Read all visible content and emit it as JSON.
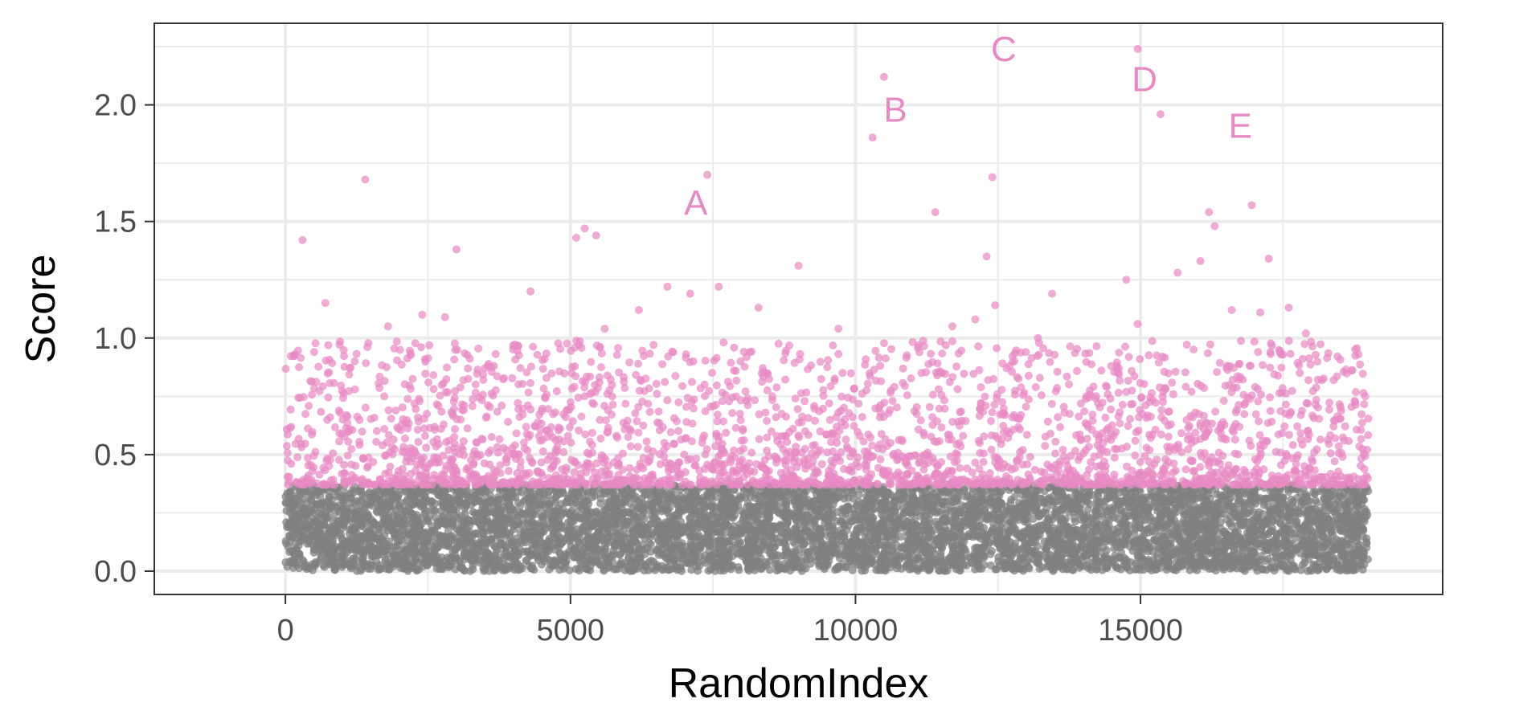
{
  "chart_data": {
    "type": "scatter",
    "title": "",
    "xlabel": "RandomIndex",
    "ylabel": "Score",
    "xlim": [
      -2300,
      20300
    ],
    "ylim": [
      -0.1,
      2.35
    ],
    "x_ticks": [
      0,
      5000,
      10000,
      15000
    ],
    "x_tick_labels": [
      "0",
      "5000",
      "10000",
      "15000"
    ],
    "y_ticks": [
      0.0,
      0.5,
      1.0,
      1.5,
      2.0
    ],
    "y_tick_labels": [
      "0.0",
      "0.5",
      "1.0",
      "1.5",
      "2.0"
    ],
    "grid": true,
    "threshold": 0.37,
    "colors": {
      "above": "#e78ac3",
      "below": "#7f7f7f",
      "panel_border": "#333333",
      "grid": "#ebebeb"
    },
    "n_points_approx": 19000,
    "series": [
      {
        "color": "#e78ac3",
        "points": [
          [
            7400,
            1.7
          ],
          [
            10300,
            1.86
          ],
          [
            10500,
            2.12
          ],
          [
            14950,
            2.24
          ],
          [
            15350,
            1.96
          ],
          [
            1400,
            1.68
          ],
          [
            300,
            1.42
          ],
          [
            3000,
            1.38
          ],
          [
            5250,
            1.47
          ],
          [
            5100,
            1.43
          ],
          [
            5450,
            1.44
          ],
          [
            9000,
            1.31
          ],
          [
            11400,
            1.54
          ],
          [
            12300,
            1.35
          ],
          [
            12400,
            1.69
          ],
          [
            12450,
            1.14
          ],
          [
            15650,
            1.28
          ],
          [
            16200,
            1.54
          ],
          [
            16300,
            1.48
          ],
          [
            16950,
            1.57
          ],
          [
            17250,
            1.34
          ],
          [
            16050,
            1.33
          ],
          [
            14750,
            1.25
          ],
          [
            17100,
            1.11
          ],
          [
            16600,
            1.12
          ],
          [
            17600,
            1.13
          ],
          [
            13450,
            1.19
          ],
          [
            4300,
            1.2
          ],
          [
            6700,
            1.22
          ],
          [
            7100,
            1.19
          ],
          [
            7600,
            1.22
          ],
          [
            12100,
            1.08
          ],
          [
            11700,
            1.05
          ],
          [
            2800,
            1.09
          ],
          [
            1800,
            1.05
          ],
          [
            700,
            1.15
          ],
          [
            6200,
            1.12
          ],
          [
            5600,
            1.04
          ],
          [
            9700,
            1.04
          ],
          [
            11100,
            0.97
          ],
          [
            13200,
            1.0
          ],
          [
            14950,
            1.06
          ],
          [
            17900,
            1.02
          ],
          [
            8300,
            1.13
          ],
          [
            2400,
            1.1
          ]
        ]
      },
      {
        "color": "#7f7f7f",
        "points": []
      }
    ],
    "annotations": [
      {
        "text": "A",
        "x": 7200,
        "y": 1.58
      },
      {
        "text": "B",
        "x": 10700,
        "y": 1.98
      },
      {
        "text": "C",
        "x": 12600,
        "y": 2.24
      },
      {
        "text": "D",
        "x": 15070,
        "y": 2.11
      },
      {
        "text": "E",
        "x": 16750,
        "y": 1.91
      }
    ]
  }
}
